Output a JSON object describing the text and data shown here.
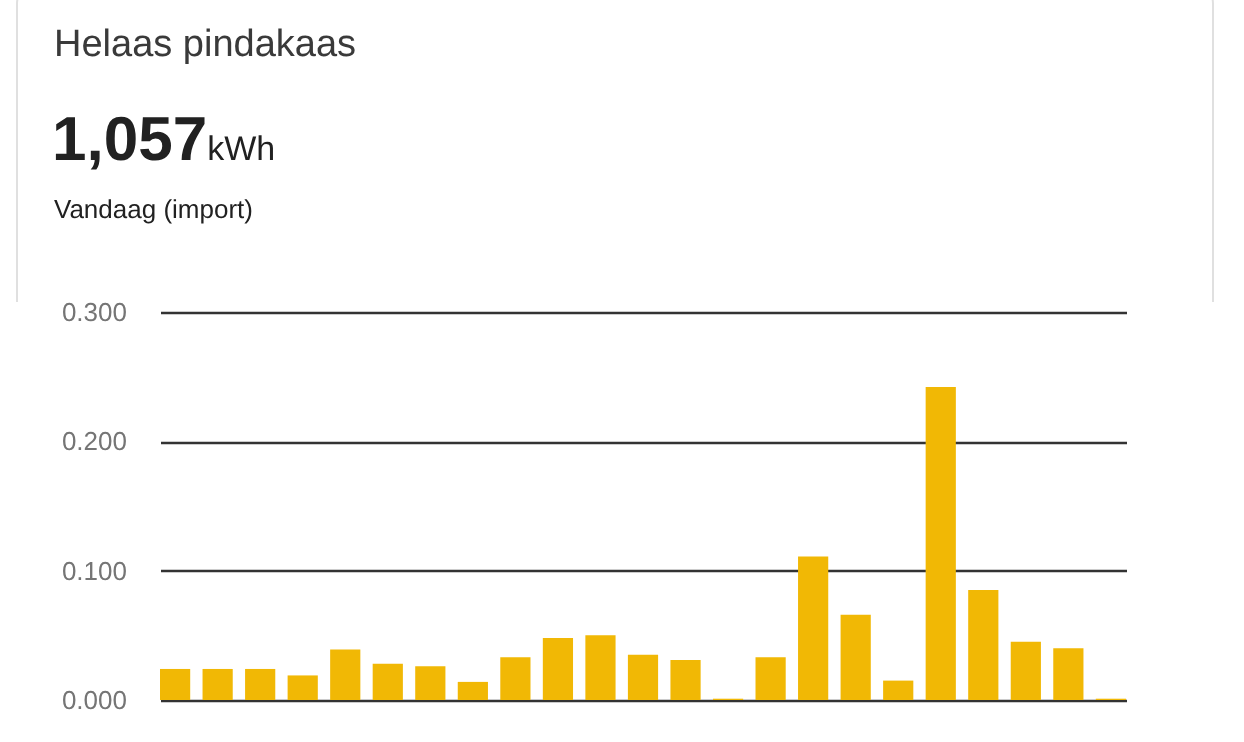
{
  "chart_data": {
    "type": "bar",
    "title": "Helaas pindakaas",
    "subtitle": "Vandaag (import)",
    "annotations": [
      "1,057",
      "kWh"
    ],
    "categories": [
      null,
      null,
      null,
      null,
      null,
      null,
      null,
      null,
      null,
      null,
      null,
      null,
      null,
      null,
      null,
      null,
      null,
      null,
      null,
      null,
      null,
      null,
      null
    ],
    "values": [
      0.024,
      0.024,
      0.024,
      0.019,
      0.039,
      0.028,
      0.026,
      0.014,
      0.033,
      0.048,
      0.05,
      0.035,
      0.031,
      0.001,
      0.033,
      0.111,
      0.066,
      0.015,
      0.242,
      0.085,
      0.045,
      0.04,
      0.001
    ],
    "color": "#f1b805",
    "ylim": [
      0,
      0.3
    ],
    "yticks": [
      {
        "value": 0,
        "label": "0.000"
      },
      {
        "value": 0.1,
        "label": "0.100"
      },
      {
        "value": 0.2,
        "label": "0.200"
      },
      {
        "value": 0.3,
        "label": "0.300"
      }
    ],
    "grid": "y",
    "tick_labels": "y"
  }
}
